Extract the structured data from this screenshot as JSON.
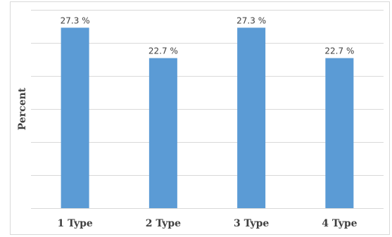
{
  "chart_data": {
    "type": "bar",
    "categories": [
      "1 Type",
      "2 Type",
      "3 Type",
      "4 Type"
    ],
    "values": [
      27.3,
      22.7,
      27.3,
      22.7
    ],
    "value_labels": [
      "27.3 %",
      "22.7 %",
      "27.3 %",
      "22.7 %"
    ],
    "title": "",
    "xlabel": "",
    "ylabel": "Percent",
    "ylim": [
      0,
      30
    ],
    "grid": true,
    "legend": "none",
    "colors": {
      "bar": "#5b9bd5",
      "grid": "#d9d9d9",
      "text": "#404040"
    }
  }
}
